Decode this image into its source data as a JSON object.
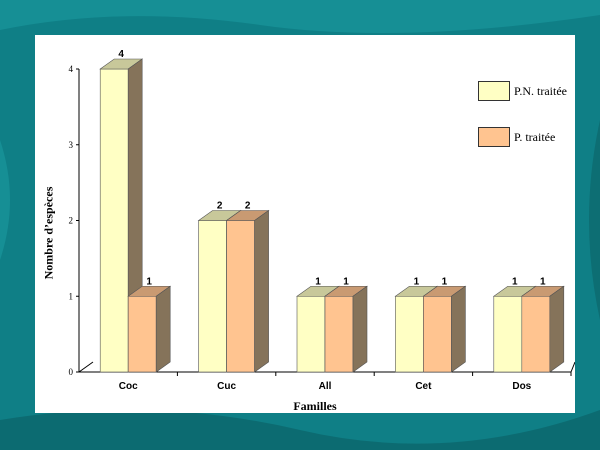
{
  "chart_data": {
    "type": "bar",
    "categories": [
      "Coc",
      "Cuc",
      "All",
      "Cet",
      "Dos"
    ],
    "series": [
      {
        "name": "P.N. traitée",
        "values": [
          4,
          2,
          1,
          1,
          1
        ],
        "color": "#ffffc4"
      },
      {
        "name": "P. traitée",
        "values": [
          1,
          2,
          1,
          1,
          1
        ],
        "color": "#ffc490"
      }
    ],
    "xlabel": "Familles",
    "ylabel": "Nombre d’espèces",
    "ylim": [
      0,
      4
    ],
    "yticks": [
      "0",
      "1",
      "2",
      "3",
      "4"
    ],
    "data_labels": true,
    "legend_position": "top-right",
    "style": "3d-bars"
  },
  "colors": {
    "background": "#0f7f86",
    "panel": "#ffffff",
    "bar_top_light": "#c8c89a",
    "bar_top_orange": "#c99a72",
    "bar_side": "#85735a"
  }
}
